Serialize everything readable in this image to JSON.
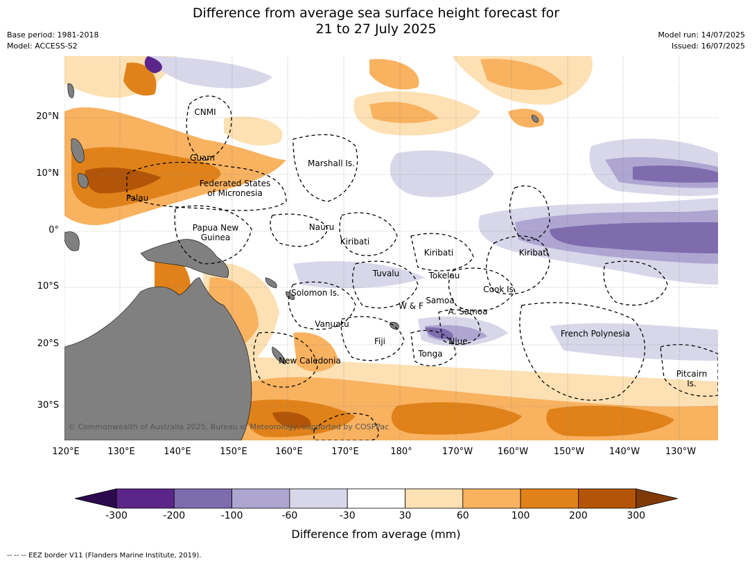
{
  "title": {
    "line1": "Difference from average sea surface height forecast for",
    "line2": "21 to 27 July 2025"
  },
  "meta": {
    "base_period": "Base period: 1981-2018",
    "model": "Model: ACCESS-S2",
    "model_run": "Model run: 14/07/2025",
    "issued": "Issued: 16/07/2025"
  },
  "map": {
    "lon_ticks": [
      "120°E",
      "130°E",
      "140°E",
      "150°E",
      "160°E",
      "170°E",
      "180°",
      "170°W",
      "160°W",
      "150°W",
      "140°W",
      "130°W"
    ],
    "lat_ticks": [
      "20°N",
      "10°N",
      "0°",
      "10°S",
      "20°S",
      "30°S"
    ],
    "copyright": "© Commonwealth of Australia 2025, Bureau of Meteorology, supported by COSPPac",
    "land_color": "#808080",
    "regions": [
      {
        "name": "CNMI"
      },
      {
        "name": "Guam"
      },
      {
        "name": "Marshall Is."
      },
      {
        "name": "Federated States\nof Micronesia"
      },
      {
        "name": "Palau"
      },
      {
        "name": "Papua New\nGuinea"
      },
      {
        "name": "Nauru"
      },
      {
        "name": "Kiribati"
      },
      {
        "name": "Kiribati"
      },
      {
        "name": "Kiribati"
      },
      {
        "name": "Tuvalu"
      },
      {
        "name": "Tokelau"
      },
      {
        "name": "Cook Is."
      },
      {
        "name": "Solomon Is."
      },
      {
        "name": "Samoa"
      },
      {
        "name": "W & F"
      },
      {
        "name": "A. Samoa"
      },
      {
        "name": "Vanuatu"
      },
      {
        "name": "Fiji"
      },
      {
        "name": "Niue"
      },
      {
        "name": "French Polynesia"
      },
      {
        "name": "Tonga"
      },
      {
        "name": "New Caledonia"
      },
      {
        "name": "Pitcairn\nIs."
      }
    ]
  },
  "colorbar": {
    "title": "Difference from average (mm)",
    "labels": [
      "-300",
      "-200",
      "-100",
      "-60",
      "-30",
      "30",
      "60",
      "100",
      "200",
      "300"
    ],
    "colors": [
      "#2d0a4e",
      "#5b2689",
      "#7e6cae",
      "#aea6d1",
      "#d8d7ea",
      "#ffffff",
      "#fde0b3",
      "#f8b260",
      "#e08219",
      "#b25508",
      "#7f3a08"
    ]
  },
  "footnote": "-- -- -- EEZ border V11 (Flanders Marine Institute, 2019)."
}
